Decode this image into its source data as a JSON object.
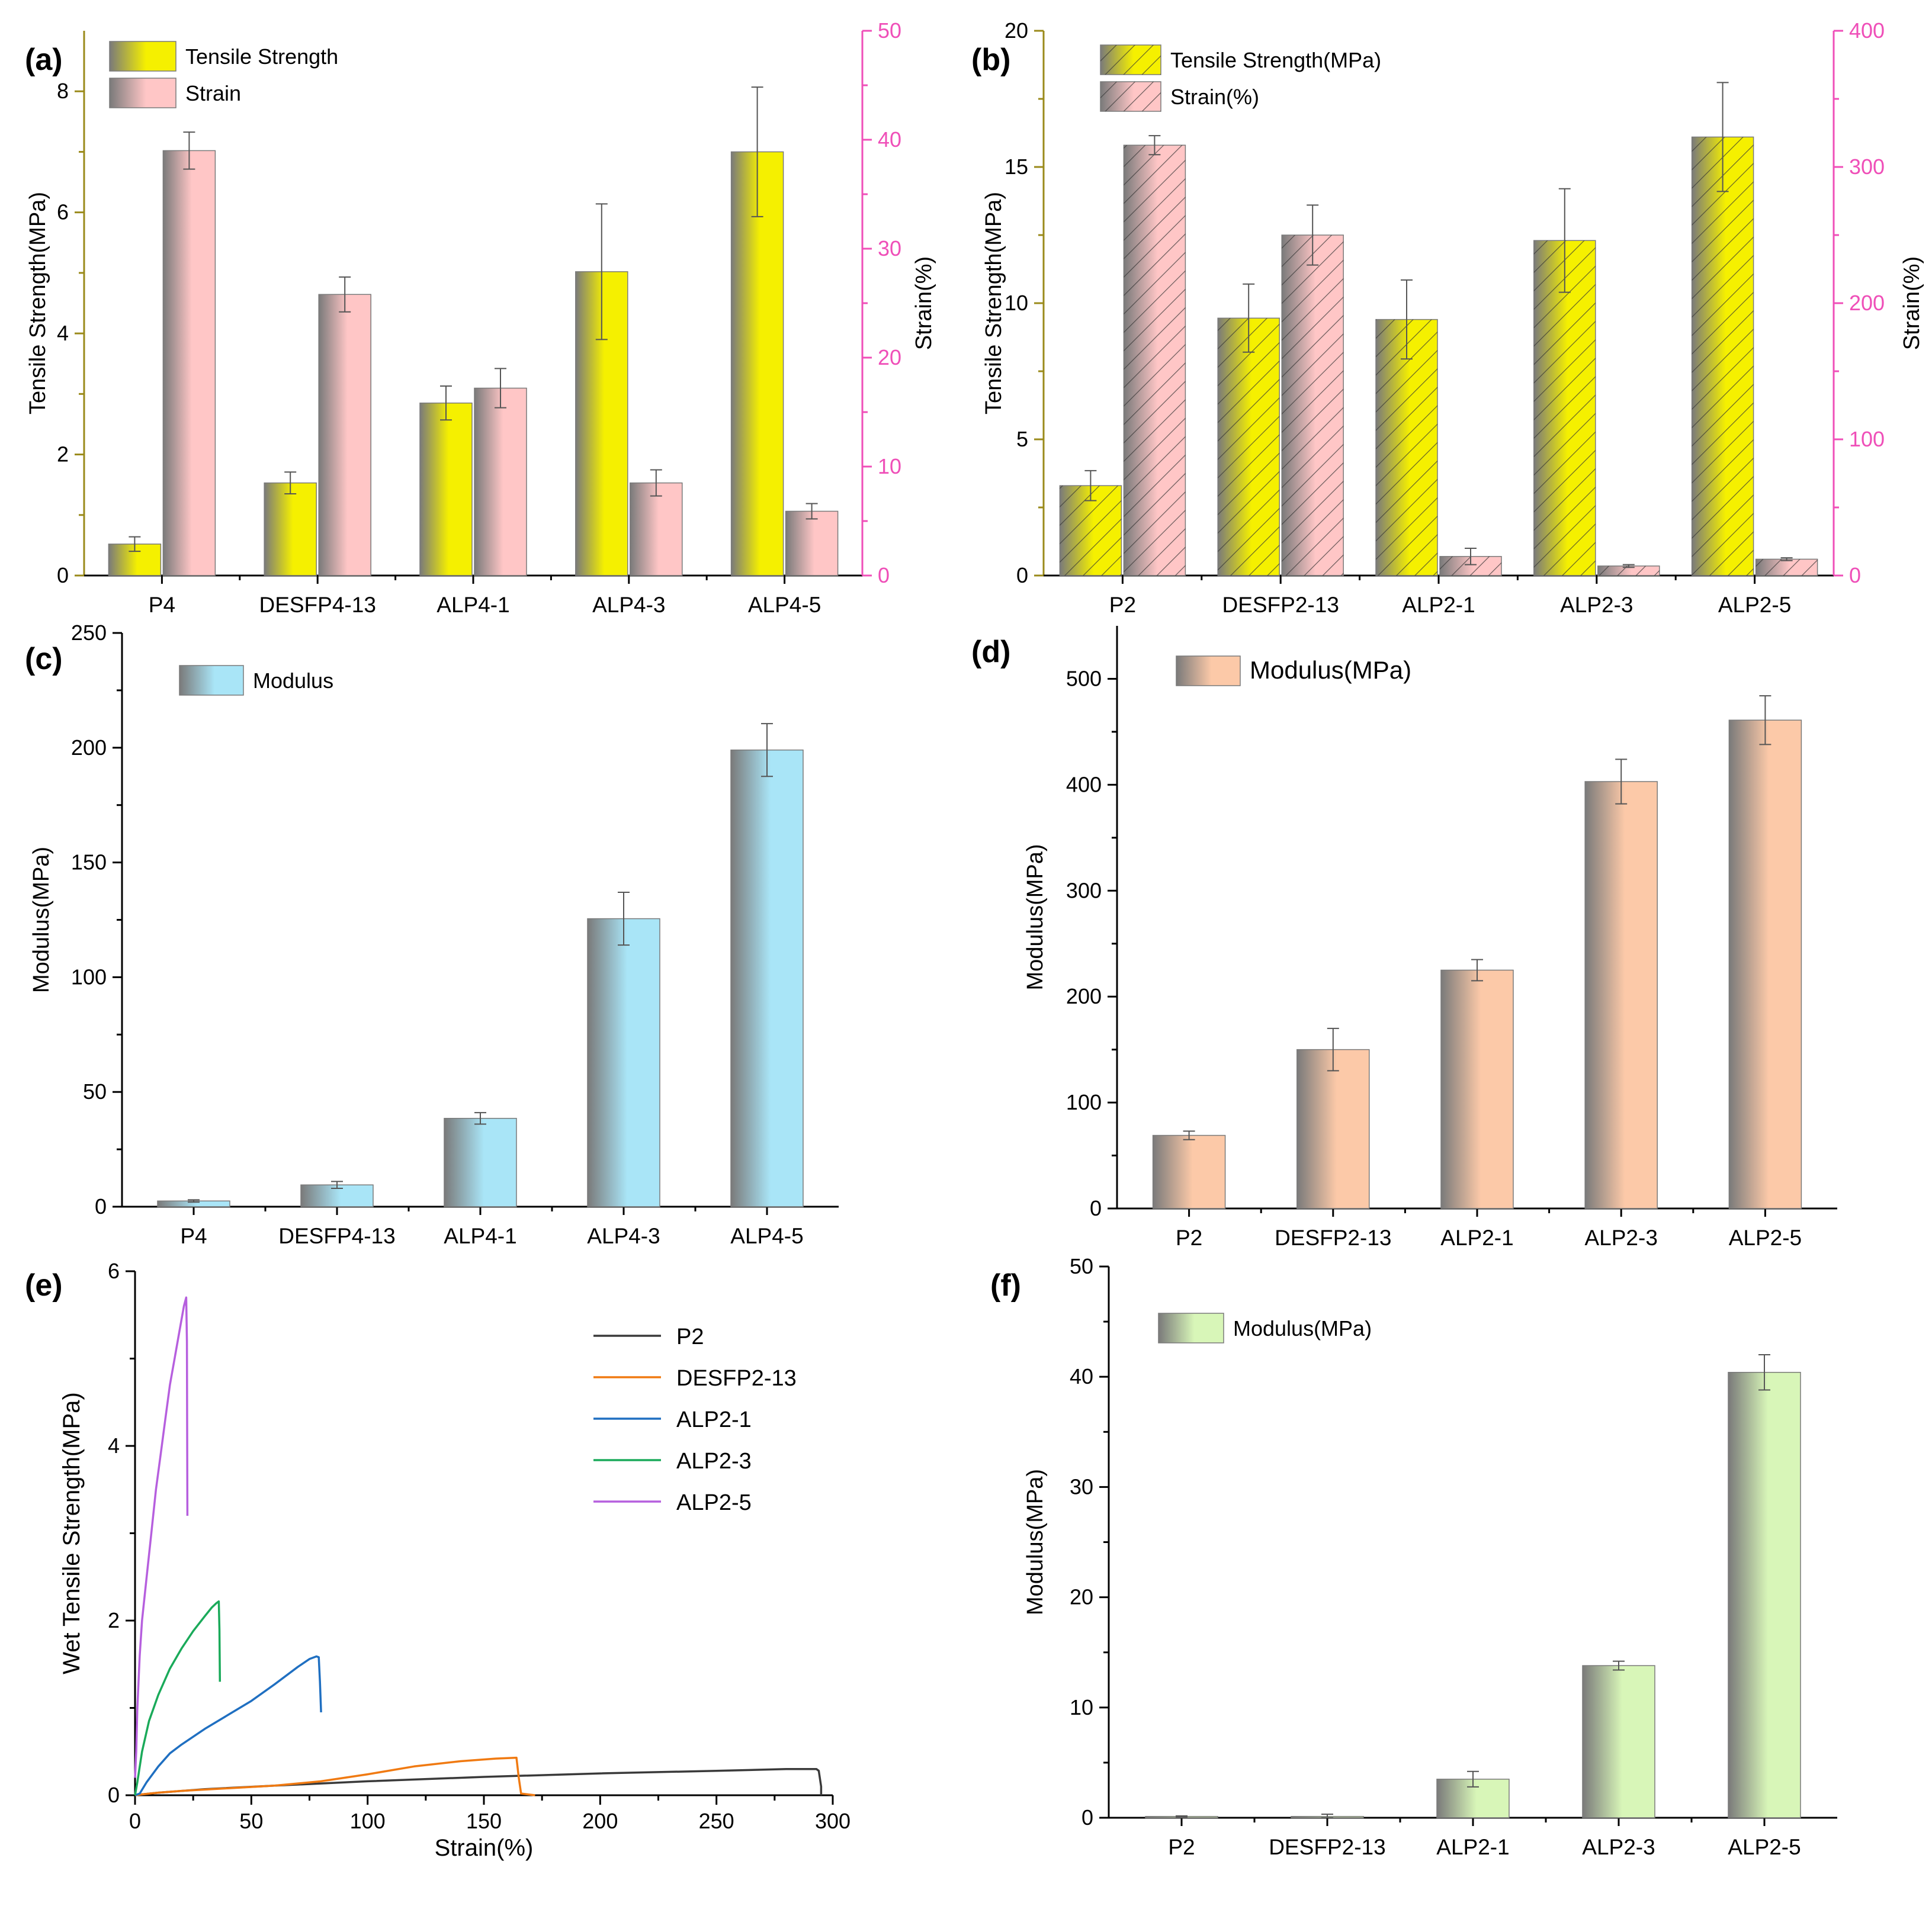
{
  "colors": {
    "yellow": "#f5f000",
    "pink": "#ffc6c6",
    "blue": "#a9e5f7",
    "peach": "#fcc9a8",
    "green": "#d8f6b8",
    "gray": "#7a7a7a",
    "magenta_axis": "#ef4fb8",
    "olive_axis": "#9a8a1a"
  },
  "chart_data": [
    {
      "panel": "(a)",
      "type": "bar",
      "categories": [
        "P4",
        "DESFP4-13",
        "ALP4-1",
        "ALP4-3",
        "ALP4-5"
      ],
      "ylabel": "Tensile Strength(MPa)",
      "y2label": "Strain(%)",
      "ylim": [
        0,
        9
      ],
      "y2lim": [
        0,
        50
      ],
      "yticks": [
        "0",
        "2",
        "4",
        "6",
        "8"
      ],
      "y2ticks": [
        "0",
        "10",
        "20",
        "30",
        "40",
        "50"
      ],
      "legend": [
        "Tensile Strength",
        "Strain"
      ],
      "series": [
        {
          "name": "Tensile Strength",
          "axis": "left",
          "values": [
            0.52,
            1.53,
            2.85,
            5.02,
            7.0
          ],
          "errors": [
            0.12,
            0.18,
            0.28,
            1.12,
            1.07
          ]
        },
        {
          "name": "Strain",
          "axis": "right",
          "values": [
            39.0,
            25.8,
            17.2,
            8.5,
            5.9
          ],
          "errors": [
            1.7,
            1.6,
            1.8,
            1.2,
            0.7
          ]
        }
      ]
    },
    {
      "panel": "(b)",
      "type": "bar",
      "categories": [
        "P2",
        "DESFP2-13",
        "ALP2-1",
        "ALP2-3",
        "ALP2-5"
      ],
      "ylabel": "Tensile Strength(MPa)",
      "y2label": "Strain(%)",
      "ylim": [
        0,
        20
      ],
      "y2lim": [
        0,
        400
      ],
      "yticks": [
        "0",
        "5",
        "10",
        "15",
        "20"
      ],
      "y2ticks": [
        "0",
        "100",
        "200",
        "300",
        "400"
      ],
      "legend": [
        "Tensile Strength(MPa)",
        "Strain(%)"
      ],
      "series": [
        {
          "name": "Tensile Strength(MPa)",
          "axis": "left",
          "values": [
            3.3,
            9.45,
            9.4,
            12.3,
            16.1
          ],
          "errors": [
            0.55,
            1.25,
            1.45,
            1.9,
            2.0
          ]
        },
        {
          "name": "Strain(%)",
          "axis": "right",
          "values": [
            316,
            250,
            14,
            7,
            12
          ],
          "errors": [
            7,
            22,
            6,
            1,
            1
          ]
        }
      ]
    },
    {
      "panel": "(c)",
      "type": "bar",
      "categories": [
        "P4",
        "DESFP4-13",
        "ALP4-1",
        "ALP4-3",
        "ALP4-5"
      ],
      "ylabel": "Modulus(MPa)",
      "ylim": [
        0,
        250
      ],
      "yticks": [
        "0",
        "50",
        "100",
        "150",
        "200",
        "250"
      ],
      "legend": [
        "Modulus"
      ],
      "series": [
        {
          "name": "Modulus",
          "axis": "left",
          "values": [
            2.5,
            9.5,
            38.5,
            125.5,
            199.0
          ],
          "errors": [
            0.5,
            1.5,
            2.5,
            11.5,
            11.5
          ]
        }
      ]
    },
    {
      "panel": "(d)",
      "type": "bar",
      "categories": [
        "P2",
        "DESFP2-13",
        "ALP2-1",
        "ALP2-3",
        "ALP2-5"
      ],
      "ylabel": "Modulus(MPa)",
      "ylim": [
        0,
        550
      ],
      "yticks": [
        "0",
        "100",
        "200",
        "300",
        "400",
        "500"
      ],
      "legend": [
        "Modulus(MPa)"
      ],
      "series": [
        {
          "name": "Modulus(MPa)",
          "axis": "left",
          "values": [
            69,
            150,
            225,
            403,
            461
          ],
          "errors": [
            4,
            20,
            10,
            21,
            23
          ]
        }
      ]
    },
    {
      "panel": "(e)",
      "type": "line",
      "xlabel": "Strain(%)",
      "ylabel": "Wet Tensile Strength(MPa)",
      "xlim": [
        0,
        300
      ],
      "ylim": [
        0,
        6
      ],
      "xticks": [
        "0",
        "50",
        "100",
        "150",
        "200",
        "250",
        "300"
      ],
      "yticks": [
        "0",
        "2",
        "4",
        "6"
      ],
      "series": [
        {
          "name": "P2",
          "color": "#3a3a3a",
          "points": [
            [
              0,
              0
            ],
            [
              3,
              0.01
            ],
            [
              10,
              0.03
            ],
            [
              30,
              0.07
            ],
            [
              60,
              0.11
            ],
            [
              100,
              0.16
            ],
            [
              150,
              0.21
            ],
            [
              200,
              0.25
            ],
            [
              250,
              0.28
            ],
            [
              280,
              0.3
            ],
            [
              293,
              0.3
            ],
            [
              294,
              0.28
            ],
            [
              295,
              0.1
            ],
            [
              295,
              0
            ]
          ]
        },
        {
          "name": "DESFP2-13",
          "color": "#f07a12",
          "points": [
            [
              0,
              0
            ],
            [
              3,
              0.01
            ],
            [
              10,
              0.03
            ],
            [
              20,
              0.05
            ],
            [
              40,
              0.08
            ],
            [
              60,
              0.11
            ],
            [
              80,
              0.16
            ],
            [
              100,
              0.24
            ],
            [
              120,
              0.33
            ],
            [
              140,
              0.39
            ],
            [
              155,
              0.42
            ],
            [
              164,
              0.43
            ],
            [
              165,
              0.2
            ],
            [
              166,
              0.02
            ],
            [
              172,
              0
            ]
          ]
        },
        {
          "name": "ALP2-1",
          "color": "#1f6fc1",
          "points": [
            [
              0,
              0
            ],
            [
              2,
              0.02
            ],
            [
              5,
              0.15
            ],
            [
              10,
              0.33
            ],
            [
              15,
              0.48
            ],
            [
              20,
              0.58
            ],
            [
              30,
              0.76
            ],
            [
              40,
              0.92
            ],
            [
              50,
              1.08
            ],
            [
              60,
              1.27
            ],
            [
              70,
              1.47
            ],
            [
              75,
              1.56
            ],
            [
              78,
              1.59
            ],
            [
              79,
              1.58
            ],
            [
              79.5,
              1.3
            ],
            [
              80,
              0.95
            ]
          ]
        },
        {
          "name": "ALP2-3",
          "color": "#1aaa5a",
          "points": [
            [
              0,
              0
            ],
            [
              1,
              0.15
            ],
            [
              3,
              0.5
            ],
            [
              6,
              0.85
            ],
            [
              10,
              1.15
            ],
            [
              15,
              1.45
            ],
            [
              20,
              1.68
            ],
            [
              25,
              1.88
            ],
            [
              30,
              2.05
            ],
            [
              33,
              2.15
            ],
            [
              35,
              2.2
            ],
            [
              36,
              2.22
            ],
            [
              36.3,
              1.9
            ],
            [
              36.5,
              1.3
            ]
          ]
        },
        {
          "name": "ALP2-5",
          "color": "#b65fde",
          "points": [
            [
              0,
              0.2
            ],
            [
              0.5,
              0.5
            ],
            [
              1,
              1.0
            ],
            [
              2,
              1.6
            ],
            [
              3,
              2.0
            ],
            [
              5,
              2.5
            ],
            [
              7,
              3.0
            ],
            [
              9,
              3.5
            ],
            [
              11,
              3.9
            ],
            [
              13,
              4.3
            ],
            [
              15,
              4.7
            ],
            [
              17,
              5.0
            ],
            [
              19,
              5.3
            ],
            [
              21,
              5.6
            ],
            [
              22,
              5.7
            ],
            [
              22.3,
              5.2
            ],
            [
              22.5,
              3.2
            ]
          ]
        }
      ]
    },
    {
      "panel": "(f)",
      "type": "bar",
      "categories": [
        "P2",
        "DESFP2-13",
        "ALP2-1",
        "ALP2-3",
        "ALP2-5"
      ],
      "ylabel": "Modulus(MPa)",
      "ylim": [
        0,
        50
      ],
      "yticks": [
        "0",
        "10",
        "20",
        "30",
        "40",
        "50"
      ],
      "legend": [
        "Modulus(MPa)"
      ],
      "series": [
        {
          "name": "Modulus(MPa)",
          "axis": "left",
          "values": [
            0.12,
            0.12,
            3.5,
            13.8,
            40.4
          ],
          "errors": [
            0.05,
            0.2,
            0.7,
            0.4,
            1.6
          ]
        }
      ]
    }
  ]
}
